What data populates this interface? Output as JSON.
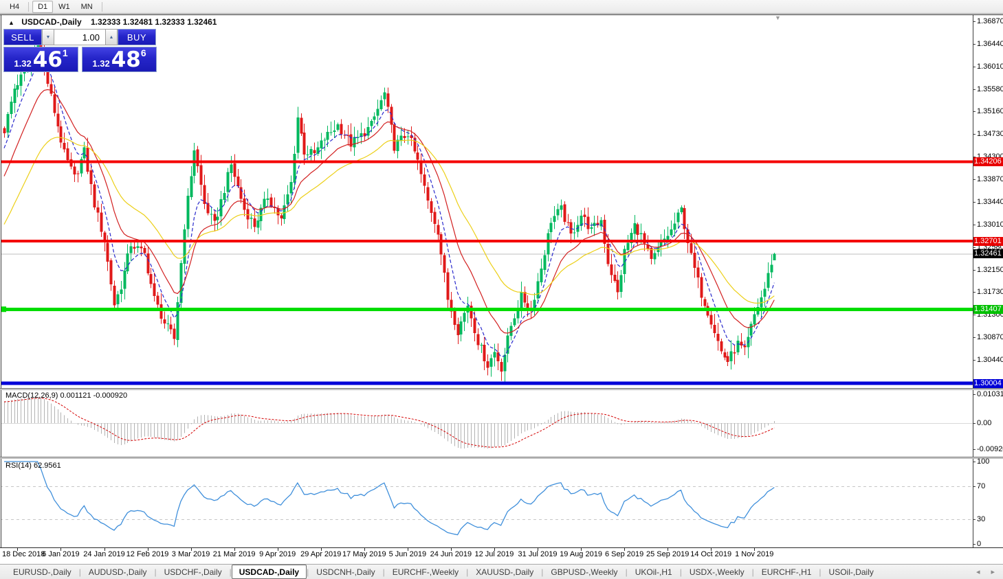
{
  "toolbar": {
    "timeframes": [
      {
        "label": "H4",
        "active": false
      },
      {
        "label": "D1",
        "active": true
      },
      {
        "label": "W1",
        "active": false
      },
      {
        "label": "MN",
        "active": false
      }
    ]
  },
  "chart": {
    "collapse_arrow": "▲",
    "symbol_title": "USDCAD-,Daily",
    "ohlc_text": "1.32333 1.32481 1.32333 1.32461",
    "shift_marker": "▼",
    "trade_panel": {
      "sell_label": "SELL",
      "buy_label": "BUY",
      "volume": "1.00",
      "spin_down": "▼",
      "spin_up": "▲",
      "sell_price": {
        "small": "1.32",
        "big": "46",
        "sup": "1"
      },
      "buy_price": {
        "small": "1.32",
        "big": "48",
        "sup": "6"
      }
    }
  },
  "indicator_panels": {
    "macd_label": "MACD(12,26,9) 0.001121 -0.000920",
    "rsi_label": "RSI(14) 62.9561"
  },
  "axis": {
    "y_ticks": [
      "1.36870",
      "1.36440",
      "1.36010",
      "1.35580",
      "1.35160",
      "1.34730",
      "1.34300",
      "1.33870",
      "1.33440",
      "1.33010",
      "1.32580",
      "1.32150",
      "1.31730",
      "1.31300",
      "1.30870",
      "1.30440"
    ],
    "macd_ticks": [
      {
        "label": "0.010311",
        "value": 0.010311
      },
      {
        "label": "0.00",
        "value": 0
      },
      {
        "label": "-0.00920",
        "value": -0.0092
      }
    ],
    "rsi_ticks": [
      {
        "label": "100",
        "value": 100
      },
      {
        "label": "70",
        "value": 70
      },
      {
        "label": "30",
        "value": 30
      },
      {
        "label": "0",
        "value": 0
      }
    ],
    "price_tags": [
      {
        "label": "1.34206",
        "price": 1.34206,
        "bg": "#e80000"
      },
      {
        "label": "1.32701",
        "price": 1.32701,
        "bg": "#e80000"
      },
      {
        "label": "1.32461",
        "price": 1.32461,
        "bg": "#000000"
      },
      {
        "label": "1.31407",
        "price": 1.31407,
        "bg": "#00c000"
      },
      {
        "label": "1.30004",
        "price": 1.30004,
        "bg": "#0000d8"
      }
    ]
  },
  "chart_data": {
    "type": "candlestick",
    "symbol": "USDCAD",
    "timeframe": "Daily",
    "ohlc_values": {
      "open": 1.32333,
      "high": 1.32481,
      "low": 1.32333,
      "close": 1.32461
    },
    "days": 232,
    "y_axis_range": [
      1.299,
      1.37
    ],
    "x_tick_dates": [
      "18 Dec 2018",
      "6 Jan 2019",
      "24 Jan 2019",
      "12 Feb 2019",
      "3 Mar 2019",
      "21 Mar 2019",
      "9 Apr 2019",
      "29 Apr 2019",
      "17 May 2019",
      "5 Jun 2019",
      "24 Jun 2019",
      "12 Jul 2019",
      "31 Jul 2019",
      "19 Aug 2019",
      "6 Sep 2019",
      "25 Sep 2019",
      "14 Oct 2019",
      "1 Nov 2019"
    ],
    "price_anchors": [
      [
        0,
        1.348
      ],
      [
        3,
        1.356
      ],
      [
        6,
        1.359
      ],
      [
        10,
        1.365
      ],
      [
        13,
        1.357
      ],
      [
        18,
        1.3435
      ],
      [
        21,
        1.339
      ],
      [
        24,
        1.344
      ],
      [
        27,
        1.334
      ],
      [
        30,
        1.327
      ],
      [
        33,
        1.315
      ],
      [
        35,
        1.3185
      ],
      [
        38,
        1.3265
      ],
      [
        42,
        1.3245
      ],
      [
        45,
        1.316
      ],
      [
        48,
        1.3115
      ],
      [
        51,
        1.3085
      ],
      [
        54,
        1.33
      ],
      [
        57,
        1.3445
      ],
      [
        60,
        1.334
      ],
      [
        63,
        1.33
      ],
      [
        68,
        1.3415
      ],
      [
        72,
        1.333
      ],
      [
        75,
        1.33
      ],
      [
        79,
        1.3355
      ],
      [
        83,
        1.331
      ],
      [
        86,
        1.338
      ],
      [
        88,
        1.3505
      ],
      [
        90,
        1.344
      ],
      [
        93,
        1.3435
      ],
      [
        96,
        1.3465
      ],
      [
        100,
        1.349
      ],
      [
        104,
        1.3455
      ],
      [
        107,
        1.347
      ],
      [
        110,
        1.349
      ],
      [
        114,
        1.355
      ],
      [
        117,
        1.345
      ],
      [
        121,
        1.3475
      ],
      [
        124,
        1.342
      ],
      [
        127,
        1.3345
      ],
      [
        130,
        1.329
      ],
      [
        133,
        1.316
      ],
      [
        136,
        1.31
      ],
      [
        139,
        1.315
      ],
      [
        142,
        1.308
      ],
      [
        145,
        1.3035
      ],
      [
        147,
        1.306
      ],
      [
        149,
        1.303
      ],
      [
        152,
        1.311
      ],
      [
        155,
        1.3165
      ],
      [
        158,
        1.314
      ],
      [
        161,
        1.322
      ],
      [
        164,
        1.331
      ],
      [
        167,
        1.333
      ],
      [
        170,
        1.328
      ],
      [
        173,
        1.332
      ],
      [
        176,
        1.329
      ],
      [
        179,
        1.331
      ],
      [
        181,
        1.323
      ],
      [
        184,
        1.317
      ],
      [
        186,
        1.325
      ],
      [
        189,
        1.33
      ],
      [
        191,
        1.328
      ],
      [
        194,
        1.323
      ],
      [
        197,
        1.3265
      ],
      [
        200,
        1.329
      ],
      [
        203,
        1.333
      ],
      [
        206,
        1.324
      ],
      [
        209,
        1.317
      ],
      [
        212,
        1.312
      ],
      [
        215,
        1.306
      ],
      [
        217,
        1.3042
      ],
      [
        220,
        1.3075
      ],
      [
        222,
        1.306
      ],
      [
        225,
        1.313
      ],
      [
        228,
        1.318
      ],
      [
        230,
        1.323
      ],
      [
        231,
        1.32461
      ]
    ],
    "horizontal_levels": [
      {
        "price": 1.34206,
        "color": "#f40000",
        "thickness": 4,
        "handle": false
      },
      {
        "price": 1.32701,
        "color": "#f40000",
        "thickness": 4,
        "handle": false
      },
      {
        "price": 1.31407,
        "color": "#00dd00",
        "thickness": 5,
        "handle": true
      },
      {
        "price": 1.30004,
        "color": "#0000d9",
        "thickness": 5,
        "handle": false
      }
    ],
    "current_price": {
      "value": 1.32461,
      "line_color": "#bfbfbf"
    },
    "candle_colors": {
      "up": "#00b85e",
      "down": "#e01919"
    },
    "moving_averages": [
      {
        "period": 7,
        "color": "#2929cc",
        "style": "dashed"
      },
      {
        "period": 16,
        "color": "#d22020",
        "style": "solid"
      },
      {
        "period": 34,
        "color": "#eccf16",
        "style": "solid"
      }
    ],
    "macd": {
      "fast": 12,
      "slow": 26,
      "signal": 9,
      "current_main": 0.001121,
      "current_signal": -0.00092,
      "histogram_color": "#b2b2b2",
      "signal_color": "#d40000",
      "scale": {
        "max": 0.010311,
        "min": -0.0092
      }
    },
    "rsi": {
      "period": 14,
      "current": 62.9561,
      "color": "#3f8fdb",
      "levels": [
        70,
        30
      ]
    }
  },
  "bottom_tabs": {
    "tabs": [
      {
        "label": "EURUSD-,Daily",
        "active": false
      },
      {
        "label": "AUDUSD-,Daily",
        "active": false
      },
      {
        "label": "USDCHF-,Daily",
        "active": false
      },
      {
        "label": "USDCAD-,Daily",
        "active": true
      },
      {
        "label": "USDCNH-,Daily",
        "active": false
      },
      {
        "label": "EURCHF-,Weekly",
        "active": false
      },
      {
        "label": "XAUUSD-,Daily",
        "active": false
      },
      {
        "label": "GBPUSD-,Weekly",
        "active": false
      },
      {
        "label": "UKOil-,H1",
        "active": false
      },
      {
        "label": "USDX-,Weekly",
        "active": false
      },
      {
        "label": "EURCHF-,H1",
        "active": false
      },
      {
        "label": "USOil-,Daily",
        "active": false
      }
    ],
    "nav_left": "◂",
    "nav_right": "▸"
  }
}
